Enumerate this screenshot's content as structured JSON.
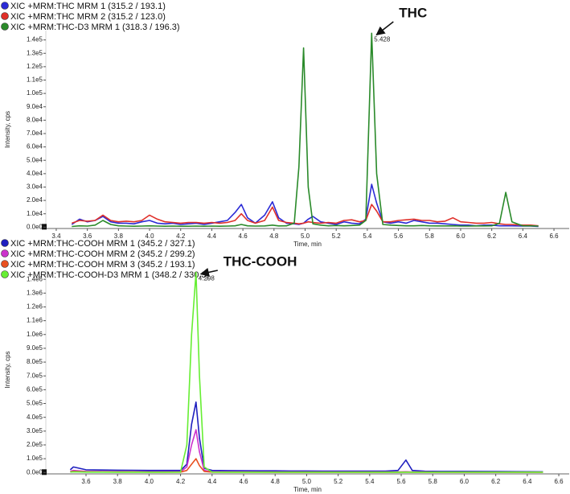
{
  "chart_data": [
    {
      "type": "line",
      "y_label": "Intensity, cps",
      "x_label": "Time, min",
      "annotation": "THC",
      "peak_label": 5.428,
      "xlim": [
        3.333,
        6.698
      ],
      "ylim": [
        -1000,
        147000
      ],
      "grid": false,
      "xticks": [
        3.4,
        3.6,
        3.8,
        {
          "value": 4,
          "label": "4.0"
        },
        4.2,
        4.4,
        4.6,
        4.8,
        {
          "value": 5,
          "label": "5.0"
        },
        5.2,
        5.4,
        5.6,
        5.8,
        {
          "value": 6,
          "label": "6.0"
        },
        6.2,
        6.4,
        6.6
      ],
      "yticks": [
        {
          "value": 0,
          "label": "0.0e0"
        },
        {
          "value": 10000,
          "label": "1.0e4"
        },
        {
          "value": 20000,
          "label": "2.0e4"
        },
        {
          "value": 30000,
          "label": "3.0e4"
        },
        {
          "value": 40000,
          "label": "4.0e4"
        },
        {
          "value": 50000,
          "label": "5.0e4"
        },
        {
          "value": 60000,
          "label": "6.0e4"
        },
        {
          "value": 70000,
          "label": "7.0e4"
        },
        {
          "value": 80000,
          "label": "8.0e4"
        },
        {
          "value": 90000,
          "label": "9.0e4"
        },
        {
          "value": 100000,
          "label": "1.0e5"
        },
        {
          "value": 110000,
          "label": "1.1e5"
        },
        {
          "value": 120000,
          "label": "1.2e5"
        },
        {
          "value": 130000,
          "label": "1.3e5"
        },
        {
          "value": 140000,
          "label": "1.4e5"
        }
      ],
      "x": [
        3.5,
        3.55,
        3.6,
        3.65,
        3.7,
        3.75,
        3.8,
        3.85,
        3.9,
        3.95,
        4.0,
        4.05,
        4.1,
        4.15,
        4.2,
        4.25,
        4.3,
        4.35,
        4.4,
        4.45,
        4.5,
        4.55,
        4.59,
        4.63,
        4.68,
        4.74,
        4.79,
        4.83,
        4.88,
        4.93,
        4.96,
        4.99,
        5.02,
        5.05,
        5.1,
        5.15,
        5.2,
        5.25,
        5.3,
        5.35,
        5.39,
        5.428,
        5.46,
        5.5,
        5.55,
        5.6,
        5.65,
        5.7,
        5.75,
        5.8,
        5.85,
        5.9,
        5.95,
        6.0,
        6.05,
        6.1,
        6.15,
        6.2,
        6.25,
        6.29,
        6.33,
        6.4,
        6.45,
        6.5
      ],
      "series": [
        {
          "name": "XIC +MRM:THC MRM 1 (315.2 / 193.1)",
          "color": "#2b2bd6",
          "values": [
            2000,
            6000,
            4000,
            5000,
            8000,
            4000,
            3000,
            3000,
            2500,
            4000,
            5000,
            3000,
            2500,
            3000,
            2000,
            2500,
            3000,
            2000,
            3000,
            4000,
            5000,
            11000,
            17000,
            7000,
            3000,
            9000,
            19000,
            7000,
            3000,
            2500,
            2000,
            3000,
            6000,
            8000,
            4000,
            3000,
            2000,
            4000,
            3000,
            2500,
            6000,
            32000,
            18000,
            4000,
            3000,
            4000,
            3000,
            5000,
            4000,
            3000,
            3000,
            2500,
            2000,
            1500,
            1500,
            1000,
            1500,
            1500,
            1000,
            1000,
            1000,
            800,
            800,
            500
          ]
        },
        {
          "name": "XIC +MRM:THC MRM 2 (315.2 / 123.0)",
          "color": "#e0302a",
          "values": [
            3000,
            5000,
            4500,
            5000,
            9000,
            5000,
            4000,
            4500,
            4000,
            5000,
            9000,
            6000,
            4000,
            3500,
            3000,
            3500,
            3500,
            3000,
            3500,
            3000,
            3500,
            5000,
            10000,
            5000,
            3000,
            5000,
            15000,
            5000,
            3500,
            3000,
            2500,
            3000,
            4000,
            3500,
            3000,
            3500,
            3000,
            5000,
            5500,
            4000,
            5000,
            17000,
            12000,
            4000,
            4000,
            5000,
            5500,
            6000,
            5000,
            5000,
            4000,
            4500,
            7000,
            4000,
            3500,
            3000,
            3000,
            3500,
            2500,
            2000,
            2000,
            1500,
            1500,
            1000
          ]
        },
        {
          "name": "XIC +MRM:THC-D3 MRM 1 (318.3 / 196.3)",
          "color": "#2a8a2a",
          "values": [
            500,
            1000,
            800,
            1500,
            5000,
            2000,
            1000,
            800,
            700,
            800,
            1000,
            800,
            700,
            800,
            700,
            700,
            800,
            700,
            800,
            700,
            800,
            1000,
            2000,
            1000,
            800,
            900,
            1500,
            900,
            1000,
            3000,
            45000,
            134000,
            30000,
            2500,
            1500,
            1000,
            1200,
            1000,
            1200,
            1500,
            5000,
            145000,
            40000,
            2000,
            1500,
            1200,
            1000,
            1000,
            1200,
            1000,
            900,
            900,
            1000,
            800,
            800,
            900,
            900,
            1000,
            3000,
            26000,
            4000,
            1000,
            1000,
            800
          ]
        }
      ]
    },
    {
      "type": "line",
      "y_label": "Intensity, cps",
      "x_label": "Time, min",
      "annotation": "THC-COOH",
      "peak_label": 4.298,
      "xlim": [
        3.345,
        6.666
      ],
      "ylim": [
        -10000,
        1500000
      ],
      "grid": false,
      "xticks": [
        3.6,
        3.8,
        {
          "value": 4,
          "label": "4.0"
        },
        4.2,
        4.4,
        4.6,
        4.8,
        {
          "value": 5,
          "label": "5.0"
        },
        5.2,
        5.4,
        5.6,
        5.8,
        {
          "value": 6,
          "label": "6.0"
        },
        6.2,
        6.4,
        6.6
      ],
      "yticks": [
        {
          "value": 0,
          "label": "0.0e0"
        },
        {
          "value": 100000,
          "label": "1.0e5"
        },
        {
          "value": 200000,
          "label": "2.0e5"
        },
        {
          "value": 300000,
          "label": "3.0e5"
        },
        {
          "value": 400000,
          "label": "4.0e5"
        },
        {
          "value": 500000,
          "label": "5.0e5"
        },
        {
          "value": 600000,
          "label": "6.0e5"
        },
        {
          "value": 700000,
          "label": "7.0e5"
        },
        {
          "value": 800000,
          "label": "8.0e5"
        },
        {
          "value": 900000,
          "label": "9.0e5"
        },
        {
          "value": 1000000,
          "label": "1.0e6"
        },
        {
          "value": 1100000,
          "label": "1.1e6"
        },
        {
          "value": 1200000,
          "label": "1.2e6"
        },
        {
          "value": 1300000,
          "label": "1.3e6"
        },
        {
          "value": 1400000,
          "label": "1.4e6"
        }
      ],
      "x": [
        3.5,
        3.52,
        3.6,
        3.7,
        3.8,
        3.9,
        4.0,
        4.1,
        4.2,
        4.24,
        4.27,
        4.298,
        4.32,
        4.35,
        4.4,
        4.5,
        4.6,
        4.7,
        4.8,
        4.9,
        5.0,
        5.1,
        5.2,
        5.3,
        5.4,
        5.5,
        5.58,
        5.63,
        5.67,
        5.75,
        5.85,
        6.0,
        6.2,
        6.4,
        6.5
      ],
      "series": [
        {
          "name": "XIC +MRM:THC-COOH MRM 1 (345.2 / 327.1)",
          "color": "#1f1fbf",
          "values": [
            20000,
            40000,
            20000,
            18000,
            17000,
            16000,
            15000,
            15000,
            15000,
            60000,
            350000,
            510000,
            250000,
            30000,
            15000,
            14000,
            13000,
            12000,
            12000,
            11000,
            11000,
            10000,
            10000,
            10000,
            10000,
            10000,
            15000,
            90000,
            15000,
            9000,
            8000,
            8000,
            7000,
            6000,
            5000
          ]
        },
        {
          "name": "XIC +MRM:THC-COOH MRM 2 (345.2 / 299.2)",
          "color": "#cc33cc",
          "values": [
            8000,
            15000,
            8000,
            7000,
            6000,
            6000,
            6000,
            6000,
            6000,
            40000,
            200000,
            310000,
            150000,
            15000,
            5000,
            5000,
            5000,
            4000,
            4000,
            4000,
            4000,
            4000,
            4000,
            4000,
            4000,
            4000,
            4000,
            6000,
            4000,
            4000,
            3000,
            3000,
            3000,
            3000,
            3000
          ]
        },
        {
          "name": "XIC +MRM:THC-COOH MRM 3 (345.2 / 193.1)",
          "color": "#e85020",
          "values": [
            5000,
            8000,
            5000,
            4000,
            4000,
            4000,
            3000,
            3000,
            3000,
            15000,
            60000,
            100000,
            50000,
            8000,
            3000,
            3000,
            3000,
            3000,
            2000,
            2000,
            2000,
            2000,
            2000,
            2000,
            2000,
            2000,
            2000,
            3000,
            2000,
            2000,
            2000,
            2000,
            2000,
            2000,
            2000
          ]
        },
        {
          "name": "XIC +MRM:THC-COOH-D3 MRM 1 (348.2 / 330.3)",
          "color": "#66ee33",
          "values": [
            3000,
            5000,
            3000,
            3000,
            2000,
            2000,
            2000,
            2000,
            3000,
            200000,
            1000000,
            1450000,
            700000,
            40000,
            3000,
            2000,
            2000,
            2000,
            2000,
            2000,
            2000,
            2000,
            2000,
            2000,
            2000,
            2000,
            2000,
            2000,
            2000,
            2000,
            2000,
            2000,
            2000,
            2000,
            2000
          ]
        }
      ]
    }
  ]
}
